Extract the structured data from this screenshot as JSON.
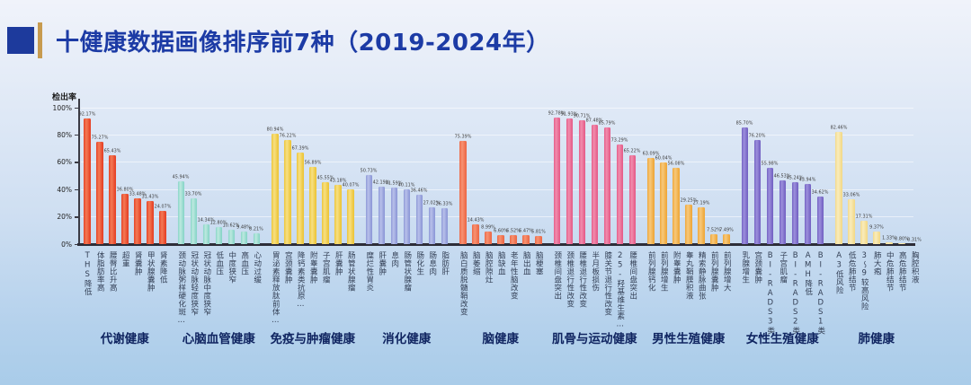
{
  "title": "十健康数据画像排序前7种（2019-2024年）",
  "chart_data": {
    "type": "bar",
    "ylabel": "检出率",
    "ylim": [
      0,
      100
    ],
    "yticks": [
      "0%",
      "20%",
      "40%",
      "60%",
      "80%",
      "100%"
    ],
    "unit": "%",
    "grid": "subtle-horizontal",
    "groups": [
      {
        "name": "代谢健康",
        "color": "#e64327",
        "light": "#f47a55",
        "items": [
          {
            "label": "THS降低",
            "value": 92.17
          },
          {
            "label": "体脂肪率高",
            "value": 75.27
          },
          {
            "label": "腰臀比升高",
            "value": 65.43
          },
          {
            "label": "超重",
            "value": 36.8
          },
          {
            "label": "肾囊肿",
            "value": 33.48
          },
          {
            "label": "甲状腺囊肿",
            "value": 31.43
          },
          {
            "label": "肾素降低",
            "value": 24.07
          }
        ]
      },
      {
        "name": "心脑血管健康",
        "color": "#8bd6c9",
        "light": "#bde9df",
        "items": [
          {
            "label": "颈动脉粥样硬化斑…",
            "value": 45.94
          },
          {
            "label": "冠状动脉轻度狭窄",
            "value": 33.7
          },
          {
            "label": "冠状动脉中度狭窄",
            "value": 14.34
          },
          {
            "label": "低血压",
            "value": 12.8
          },
          {
            "label": "中度狭窄",
            "value": 10.62
          },
          {
            "label": "高血压",
            "value": 9.48
          },
          {
            "label": "心动过缓",
            "value": 8.21
          }
        ]
      },
      {
        "name": "免疫与肿瘤健康",
        "color": "#edc63b",
        "light": "#f7e083",
        "items": [
          {
            "label": "胃泌素释放肽前体…",
            "value": 80.94
          },
          {
            "label": "宫颈囊肿",
            "value": 76.22
          },
          {
            "label": "降钙素类抗原…",
            "value": 67.39
          },
          {
            "label": "附睾囊肿",
            "value": 56.89
          },
          {
            "label": "子宫肌瘤",
            "value": 45.55
          },
          {
            "label": "肝囊肿",
            "value": 43.18
          },
          {
            "label": "肠管状腺瘤",
            "value": 40.07
          }
        ]
      },
      {
        "name": "消化健康",
        "color": "#8f9ad8",
        "light": "#b8c0ea",
        "items": [
          {
            "label": "糜烂性胃炎",
            "value": 50.73
          },
          {
            "label": "肝囊肿",
            "value": 42.19
          },
          {
            "label": "息肉",
            "value": 41.59
          },
          {
            "label": "肠管状腺瘤",
            "value": 40.11
          },
          {
            "label": "肠化生",
            "value": 36.46
          },
          {
            "label": "肠息肉",
            "value": 27.02
          },
          {
            "label": "脂肪肝",
            "value": 26.33
          }
        ]
      },
      {
        "name": "脑健康",
        "color": "#ed6a48",
        "light": "#f79272",
        "items": [
          {
            "label": "脑白质脱髓鞘改变",
            "value": 75.39
          },
          {
            "label": "脑萎缩",
            "value": 14.43
          },
          {
            "label": "脑腔隙灶",
            "value": 8.99
          },
          {
            "label": "脑缺血",
            "value": 6.6
          },
          {
            "label": "老年性脑改变",
            "value": 6.52
          },
          {
            "label": "脑出血",
            "value": 6.47
          },
          {
            "label": "脑梗塞",
            "value": 5.81
          }
        ]
      },
      {
        "name": "肌骨与运动健康",
        "color": "#e65e8a",
        "light": "#f18cad",
        "items": [
          {
            "label": "颈椎间盘突出",
            "value": 92.78
          },
          {
            "label": "颈椎退行性改变",
            "value": 91.93
          },
          {
            "label": "腰椎退行性改变",
            "value": 90.71
          },
          {
            "label": "半月板损伤",
            "value": 87.48
          },
          {
            "label": "膝关节退行性改变",
            "value": 85.79
          },
          {
            "label": "25-羟基维生素…",
            "value": 73.29
          },
          {
            "label": "腰椎间盘突出",
            "value": 65.22
          }
        ]
      },
      {
        "name": "男性生殖健康",
        "color": "#efa83c",
        "light": "#f7c97c",
        "items": [
          {
            "label": "前列腺钙化",
            "value": 63.09
          },
          {
            "label": "前列腺增生",
            "value": 60.04
          },
          {
            "label": "附睾囊肿",
            "value": 56.08
          },
          {
            "label": "睾丸鞘膜积液",
            "value": 29.25
          },
          {
            "label": "精索静脉曲张",
            "value": 27.19
          },
          {
            "label": "前列腺囊肿",
            "value": 7.52
          },
          {
            "label": "前列腺增大",
            "value": 7.49
          }
        ]
      },
      {
        "name": "女性生殖健康",
        "color": "#7564c4",
        "light": "#9c8fdc",
        "items": [
          {
            "label": "乳腺增生",
            "value": 85.7
          },
          {
            "label": "宫颈囊肿",
            "value": 76.2
          },
          {
            "label": "BI-RADS3类",
            "value": 55.98
          },
          {
            "label": "子宫肌瘤",
            "value": 46.53
          },
          {
            "label": "BI-RADS2类",
            "value": 45.24
          },
          {
            "label": "AMH降低",
            "value": 43.94
          },
          {
            "label": "BI-RADS1类",
            "value": 34.62
          }
        ]
      },
      {
        "name": "肺健康",
        "color": "#f3da8b",
        "light": "#f9ecbc",
        "items": [
          {
            "label": "A3低风险",
            "value": 82.46
          },
          {
            "label": "低危肺结节",
            "value": 33.06
          },
          {
            "label": "3～9较高风险",
            "value": 17.31
          },
          {
            "label": "肺大疱",
            "value": 9.37
          },
          {
            "label": "中危肺结节",
            "value": 1.33
          },
          {
            "label": "高危肺结节",
            "value": 0.8
          },
          {
            "label": "胸腔积液",
            "value": 0.31
          }
        ]
      }
    ]
  }
}
